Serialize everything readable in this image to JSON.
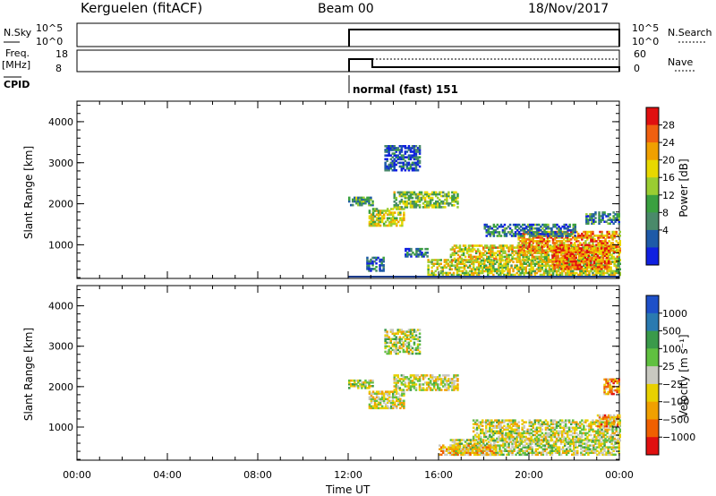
{
  "header": {
    "station": "Kerguelen (fitACF)",
    "beam": "Beam 00",
    "date": "18/Nov/2017"
  },
  "status_panels": {
    "nsky": {
      "label": "N.Sky",
      "tick_top": "10^5",
      "tick_bottom": "10^0"
    },
    "nsearch": {
      "label": "N.Search",
      "tick_top": "10^5",
      "tick_bottom": "10^0"
    },
    "freq": {
      "label": "Freq.",
      "unit": "[MHz]",
      "tick_top": "18",
      "tick_bottom": "8"
    },
    "nave": {
      "label": "Nave",
      "tick_top": "60",
      "tick_bottom": "0"
    },
    "cpid": {
      "label": "CPID",
      "value": "normal (fast) 151"
    }
  },
  "chart_data": [
    {
      "type": "heatmap",
      "name": "power",
      "ylabel": "Slant Range [km]",
      "xlabel": "Time UT",
      "x_ticks": [
        "00:00",
        "04:00",
        "08:00",
        "12:00",
        "16:00",
        "20:00",
        "00:00"
      ],
      "x_tick_hours": [
        0,
        4,
        8,
        12,
        16,
        20,
        24
      ],
      "y_ticks": [
        1000,
        2000,
        3000,
        4000
      ],
      "ylim": [
        180,
        4500
      ],
      "xlim_hours": [
        0,
        24
      ],
      "colorbar": {
        "label": "Power [dB]",
        "ticks": [
          "28",
          "24",
          "20",
          "16",
          "12",
          "8",
          "4"
        ],
        "colors": [
          "#e01010",
          "#f06010",
          "#f0a000",
          "#e8d800",
          "#9acd32",
          "#3aa040",
          "#4a8a6a",
          "#1e5aa8",
          "#1020e0"
        ]
      },
      "regions": [
        {
          "t0": 12.9,
          "t1": 14.5,
          "r0": 1450,
          "r1": 1900,
          "level": 0.55
        },
        {
          "t0": 14.0,
          "t1": 16.8,
          "r0": 1900,
          "r1": 2300,
          "level": 0.45
        },
        {
          "t0": 12.0,
          "t1": 13.1,
          "r0": 1950,
          "r1": 2150,
          "level": 0.35
        },
        {
          "t0": 13.6,
          "t1": 15.2,
          "r0": 2800,
          "r1": 3400,
          "level": 0.15
        },
        {
          "t0": 15.5,
          "t1": 24.0,
          "r0": 250,
          "r1": 650,
          "level": 0.55
        },
        {
          "t0": 16.5,
          "t1": 24.0,
          "r0": 600,
          "r1": 1000,
          "level": 0.6
        },
        {
          "t0": 19.5,
          "t1": 24.0,
          "r0": 800,
          "r1": 1300,
          "level": 0.75
        },
        {
          "t0": 21.0,
          "t1": 23.5,
          "r0": 400,
          "r1": 900,
          "level": 0.8
        },
        {
          "t0": 12.8,
          "t1": 13.6,
          "r0": 350,
          "r1": 700,
          "level": 0.2
        },
        {
          "t0": 14.5,
          "t1": 15.5,
          "r0": 700,
          "r1": 900,
          "level": 0.2
        },
        {
          "t0": 22.5,
          "t1": 24.0,
          "r0": 1500,
          "r1": 1800,
          "level": 0.3
        },
        {
          "t0": 18.0,
          "t1": 22.0,
          "r0": 1200,
          "r1": 1500,
          "level": 0.25
        }
      ]
    },
    {
      "type": "heatmap",
      "name": "velocity",
      "ylabel": "Slant Range [km]",
      "xlabel": "Time UT",
      "x_ticks": [
        "00:00",
        "04:00",
        "08:00",
        "12:00",
        "16:00",
        "20:00",
        "00:00"
      ],
      "x_tick_hours": [
        0,
        4,
        8,
        12,
        16,
        20,
        24
      ],
      "y_ticks": [
        1000,
        2000,
        3000,
        4000
      ],
      "ylim": [
        180,
        4500
      ],
      "xlim_hours": [
        0,
        24
      ],
      "colorbar": {
        "label": "Velocity [m s⁻¹]",
        "ticks": [
          "1000",
          "500",
          "100",
          "25",
          "−25",
          "−100",
          "−500",
          "−1000"
        ],
        "colors": [
          "#1e50c8",
          "#2a7ab0",
          "#3a9a4a",
          "#60c040",
          "#c8c8c0",
          "#e8d000",
          "#f0a000",
          "#f06000",
          "#e01010"
        ]
      },
      "regions": [
        {
          "t0": 12.9,
          "t1": 14.5,
          "r0": 1450,
          "r1": 1900,
          "level": 0.45
        },
        {
          "t0": 14.0,
          "t1": 16.8,
          "r0": 1900,
          "r1": 2300,
          "level": 0.45
        },
        {
          "t0": 12.0,
          "t1": 13.1,
          "r0": 1950,
          "r1": 2150,
          "level": 0.5
        },
        {
          "t0": 13.6,
          "t1": 15.2,
          "r0": 2800,
          "r1": 3400,
          "level": 0.5
        },
        {
          "t0": 16.5,
          "t1": 24.0,
          "r0": 300,
          "r1": 700,
          "level": 0.5
        },
        {
          "t0": 17.5,
          "t1": 24.0,
          "r0": 650,
          "r1": 1150,
          "level": 0.48
        },
        {
          "t0": 16.0,
          "t1": 18.5,
          "r0": 300,
          "r1": 550,
          "level": 0.35
        },
        {
          "t0": 23.3,
          "t1": 24.0,
          "r0": 1800,
          "r1": 2200,
          "level": 0.25
        },
        {
          "t0": 23.0,
          "t1": 24.0,
          "r0": 1000,
          "r1": 1300,
          "level": 0.3
        }
      ]
    }
  ]
}
